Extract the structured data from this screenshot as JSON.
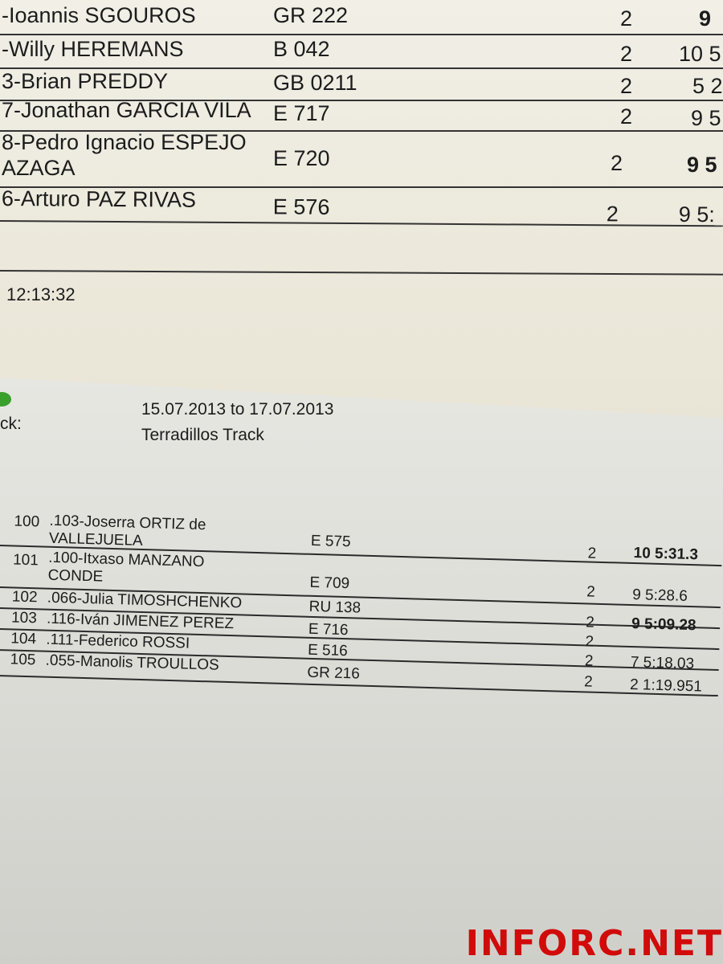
{
  "top_sheet": {
    "rows": [
      {
        "name": "-Ioannis SGOUROS",
        "nat": "GR 222",
        "q": "2",
        "result": "9"
      },
      {
        "name": "-Willy HEREMANS",
        "nat": "B 042",
        "q": "2",
        "result": "10 5"
      },
      {
        "name": "3-Brian PREDDY",
        "nat": "GB 0211",
        "q": "2",
        "result": "5 2"
      },
      {
        "name": "7-Jonathan GARCIA VILA",
        "nat": "E 717",
        "q": "2",
        "result": "9 5"
      },
      {
        "name": "8-Pedro Ignacio ESPEJO",
        "name2": "AZAGA",
        "nat": "E 720",
        "q": "2",
        "result": "9 5"
      },
      {
        "name": "6-Arturo PAZ RIVAS",
        "nat": "E 576",
        "q": "2",
        "result": "9 5:"
      }
    ],
    "time": "12:13:32"
  },
  "bottom_sheet": {
    "track_label": "ck:",
    "dates": "15.07.2013 to 17.07.2013",
    "track": "Terradillos Track",
    "rows": [
      {
        "pos": "100",
        "name": ".103-Joserra ORTIZ de",
        "name2": "VALLEJUELA",
        "nat": "E 575",
        "q": "2",
        "result": "10 5:31.3"
      },
      {
        "pos": "101",
        "name": ".100-Itxaso MANZANO",
        "name2": "CONDE",
        "nat": "E 709",
        "q": "2",
        "result": "9 5:28.6"
      },
      {
        "pos": "102",
        "name": ".066-Julia TIMOSHCHENKO",
        "nat": "RU 138",
        "q": "2",
        "result": "9 5:09.28"
      },
      {
        "pos": "103",
        "name": ".116-Iván JIMENEZ PEREZ",
        "nat": "E 716",
        "q": "2",
        "result": ""
      },
      {
        "pos": "104",
        "name": ".111-Federico ROSSI",
        "nat": "E 516",
        "q": "2",
        "result": "7 5:18.03"
      },
      {
        "pos": "105",
        "name": ".055-Manolis TROULLOS",
        "nat": "GR 216",
        "q": "2",
        "result": "2 1:19.951"
      }
    ]
  },
  "watermark": "INFORC.NET",
  "colors": {
    "watermark": "#d10a0a",
    "paper_top": "#efece2",
    "paper_bottom": "#dcdcd7"
  }
}
